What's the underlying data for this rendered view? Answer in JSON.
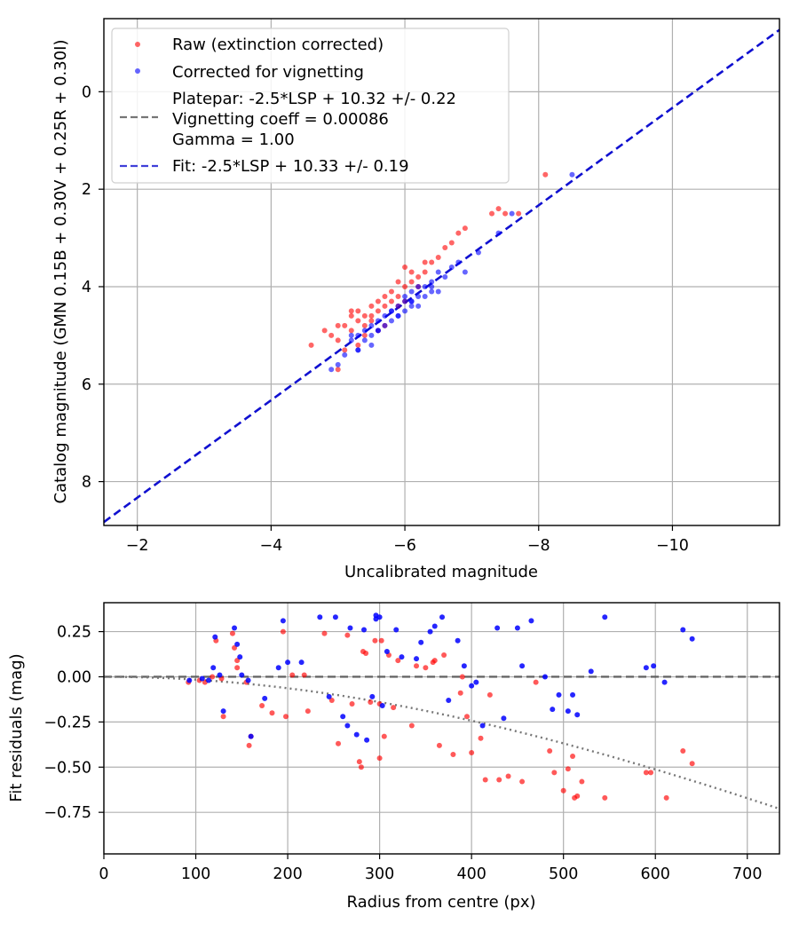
{
  "colors": {
    "raw": "#ff0000",
    "corrected": "#0000ff",
    "fit": "#1010d0",
    "platepar": "#555555",
    "radial": "#777777",
    "grid": "#b0b0b0"
  },
  "chart_data": [
    {
      "type": "scatter",
      "xlabel": "Uncalibrated magnitude",
      "ylabel": "Catalog magnitude (GMN 0.15B + 0.30V + 0.25R + 0.30I)",
      "xlim": [
        -1.5,
        -11.6
      ],
      "ylim": [
        8.9,
        -1.5
      ],
      "xticks": [
        -2,
        -4,
        -6,
        -8,
        -10
      ],
      "xtick_labels": [
        "−2",
        "−4",
        "−6",
        "−8",
        "−10"
      ],
      "yticks": [
        0,
        2,
        4,
        6,
        8
      ],
      "ytick_labels": [
        "0",
        "2",
        "4",
        "6",
        "8"
      ],
      "grid": true,
      "legend_placement": "top-left",
      "legend": {
        "raw": "Raw (extinction corrected)",
        "corrected": "Corrected for vignetting",
        "platepar_line1": "Platepar: -2.5*LSP + 10.32 +/- 0.22",
        "platepar_line2": "Vignetting coeff = 0.00086",
        "platepar_line3": "Gamma = 1.00",
        "fit": "Fit: -2.5*LSP + 10.33 +/- 0.19"
      },
      "fit_line": {
        "slope": 1.0,
        "intercept": 10.33,
        "x": [
          -1.5,
          -11.6
        ]
      },
      "platepar_line": {
        "slope": 1.0,
        "intercept": 10.32
      },
      "series": [
        {
          "name": "Raw (extinction corrected)",
          "x": [
            -4.6,
            -4.8,
            -4.9,
            -5.0,
            -5.0,
            -5.1,
            -5.2,
            -5.2,
            -5.3,
            -5.3,
            -5.4,
            -5.4,
            -5.5,
            -5.5,
            -5.5,
            -5.6,
            -5.6,
            -5.7,
            -5.7,
            -5.8,
            -5.8,
            -5.9,
            -5.9,
            -6.0,
            -6.0,
            -6.1,
            -6.1,
            -6.2,
            -6.3,
            -6.3,
            -6.4,
            -6.5,
            -6.6,
            -6.7,
            -6.8,
            -6.9,
            -7.3,
            -7.4,
            -7.5,
            -7.7,
            -8.1,
            -5.1,
            -5.3,
            -5.4,
            -5.6,
            -5.7,
            -5.9,
            -6.0,
            -6.2,
            -5.0,
            -5.2
          ],
          "y": [
            5.2,
            4.9,
            5.0,
            4.8,
            5.1,
            4.8,
            4.6,
            4.9,
            4.7,
            4.5,
            4.6,
            4.8,
            4.4,
            4.6,
            4.7,
            4.3,
            4.5,
            4.2,
            4.4,
            4.1,
            4.3,
            3.9,
            4.2,
            4.0,
            3.6,
            3.9,
            3.7,
            3.8,
            3.7,
            3.5,
            3.5,
            3.4,
            3.2,
            3.1,
            2.9,
            2.8,
            2.5,
            2.4,
            2.5,
            2.5,
            1.7,
            5.3,
            5.2,
            5.0,
            4.9,
            4.8,
            4.4,
            4.3,
            4.0,
            5.7,
            4.5
          ]
        },
        {
          "name": "Corrected for vignetting",
          "x": [
            -4.9,
            -5.0,
            -5.1,
            -5.2,
            -5.3,
            -5.3,
            -5.4,
            -5.4,
            -5.5,
            -5.5,
            -5.6,
            -5.6,
            -5.7,
            -5.7,
            -5.8,
            -5.8,
            -5.9,
            -5.9,
            -6.0,
            -6.0,
            -6.0,
            -6.1,
            -6.1,
            -6.1,
            -6.2,
            -6.2,
            -6.3,
            -6.3,
            -6.4,
            -6.4,
            -6.5,
            -6.5,
            -6.6,
            -6.7,
            -6.8,
            -6.9,
            -7.1,
            -7.4,
            -7.6,
            -8.5,
            -5.2,
            -5.6,
            -5.8,
            -6.2,
            -6.4,
            -5.3,
            -5.5,
            -5.9,
            -6.1
          ],
          "y": [
            5.7,
            5.6,
            5.4,
            5.1,
            5.0,
            5.3,
            4.9,
            5.1,
            4.8,
            5.0,
            4.7,
            4.9,
            4.6,
            4.8,
            4.5,
            4.7,
            4.4,
            4.6,
            4.3,
            4.5,
            4.2,
            4.4,
            4.1,
            4.3,
            4.2,
            4.0,
            4.0,
            4.2,
            4.1,
            3.9,
            3.7,
            4.1,
            3.8,
            3.6,
            3.5,
            3.7,
            3.3,
            2.9,
            2.5,
            1.7,
            5.0,
            4.9,
            4.5,
            4.4,
            4.0,
            5.3,
            5.2,
            4.6,
            4.3
          ]
        }
      ]
    },
    {
      "type": "scatter",
      "xlabel": "Radius from centre (px)",
      "ylabel": "Fit residuals (mag)",
      "xlim": [
        0,
        735
      ],
      "ylim": [
        -0.98,
        0.41
      ],
      "xticks": [
        0,
        100,
        200,
        300,
        400,
        500,
        600,
        700
      ],
      "xtick_labels": [
        "0",
        "100",
        "200",
        "300",
        "400",
        "500",
        "600",
        "700"
      ],
      "yticks": [
        0.25,
        0,
        -0.25,
        -0.5,
        -0.75
      ],
      "ytick_labels": [
        "0.25",
        "0.00",
        "−0.25",
        "−0.50",
        "−0.75"
      ],
      "grid": true,
      "zero_line": 0,
      "vignetting_coeff": 0.00086,
      "series": [
        {
          "name": "Raw (extinction corrected)",
          "x": [
            92,
            104,
            110,
            118,
            122,
            128,
            130,
            140,
            142,
            145,
            155,
            158,
            172,
            183,
            195,
            198,
            205,
            218,
            222,
            240,
            248,
            255,
            265,
            270,
            278,
            280,
            282,
            285,
            290,
            295,
            300,
            302,
            305,
            310,
            315,
            320,
            335,
            340,
            350,
            358,
            365,
            370,
            380,
            388,
            395,
            400,
            410,
            415,
            420,
            430,
            440,
            455,
            470,
            485,
            490,
            500,
            505,
            510,
            512,
            515,
            520,
            545,
            590,
            595,
            612,
            630,
            640,
            145,
            160,
            300,
            360,
            390
          ],
          "x_note": "",
          "y": [
            -0.03,
            -0.02,
            -0.03,
            0.0,
            0.2,
            -0.01,
            -0.22,
            0.24,
            0.16,
            0.09,
            -0.03,
            -0.38,
            -0.16,
            -0.2,
            0.25,
            -0.22,
            0.01,
            0.01,
            -0.19,
            0.24,
            -0.13,
            -0.37,
            0.23,
            -0.15,
            -0.47,
            -0.5,
            0.14,
            0.13,
            -0.14,
            0.2,
            -0.15,
            0.2,
            -0.33,
            0.12,
            -0.17,
            0.09,
            -0.27,
            0.06,
            0.05,
            0.08,
            -0.38,
            0.12,
            -0.43,
            -0.09,
            -0.22,
            -0.42,
            -0.34,
            -0.57,
            -0.1,
            -0.57,
            -0.55,
            -0.58,
            -0.03,
            -0.41,
            -0.53,
            -0.63,
            -0.51,
            -0.44,
            -0.67,
            -0.66,
            -0.58,
            -0.67,
            -0.53,
            -0.53,
            -0.67,
            -0.41,
            -0.48,
            0.05,
            -0.33,
            -0.45,
            0.09,
            0.0
          ]
        },
        {
          "name": "Corrected for vignetting",
          "x": [
            93,
            107,
            114,
            119,
            121,
            126,
            130,
            142,
            145,
            148,
            157,
            160,
            175,
            190,
            195,
            200,
            215,
            235,
            245,
            252,
            260,
            268,
            275,
            283,
            286,
            292,
            296,
            300,
            303,
            308,
            318,
            324,
            340,
            345,
            355,
            360,
            368,
            375,
            385,
            392,
            400,
            405,
            412,
            428,
            435,
            450,
            455,
            465,
            480,
            488,
            495,
            505,
            510,
            515,
            530,
            545,
            590,
            598,
            610,
            630,
            640,
            150,
            296,
            265
          ],
          "y": [
            -0.02,
            -0.01,
            -0.02,
            0.05,
            0.22,
            0.01,
            -0.19,
            0.27,
            0.18,
            0.11,
            -0.02,
            -0.33,
            -0.12,
            0.05,
            0.31,
            0.08,
            0.08,
            0.33,
            -0.11,
            0.33,
            -0.22,
            0.27,
            -0.32,
            0.26,
            -0.35,
            -0.11,
            0.32,
            0.33,
            -0.16,
            0.14,
            0.26,
            0.11,
            0.1,
            0.19,
            0.25,
            0.28,
            0.33,
            -0.13,
            0.2,
            0.06,
            -0.05,
            -0.03,
            -0.27,
            0.27,
            -0.23,
            0.27,
            0.06,
            0.31,
            0.0,
            -0.18,
            -0.1,
            -0.19,
            -0.1,
            -0.21,
            0.03,
            0.33,
            0.05,
            0.06,
            -0.03,
            0.26,
            0.21,
            0.01,
            0.34,
            -0.27
          ]
        }
      ]
    }
  ]
}
